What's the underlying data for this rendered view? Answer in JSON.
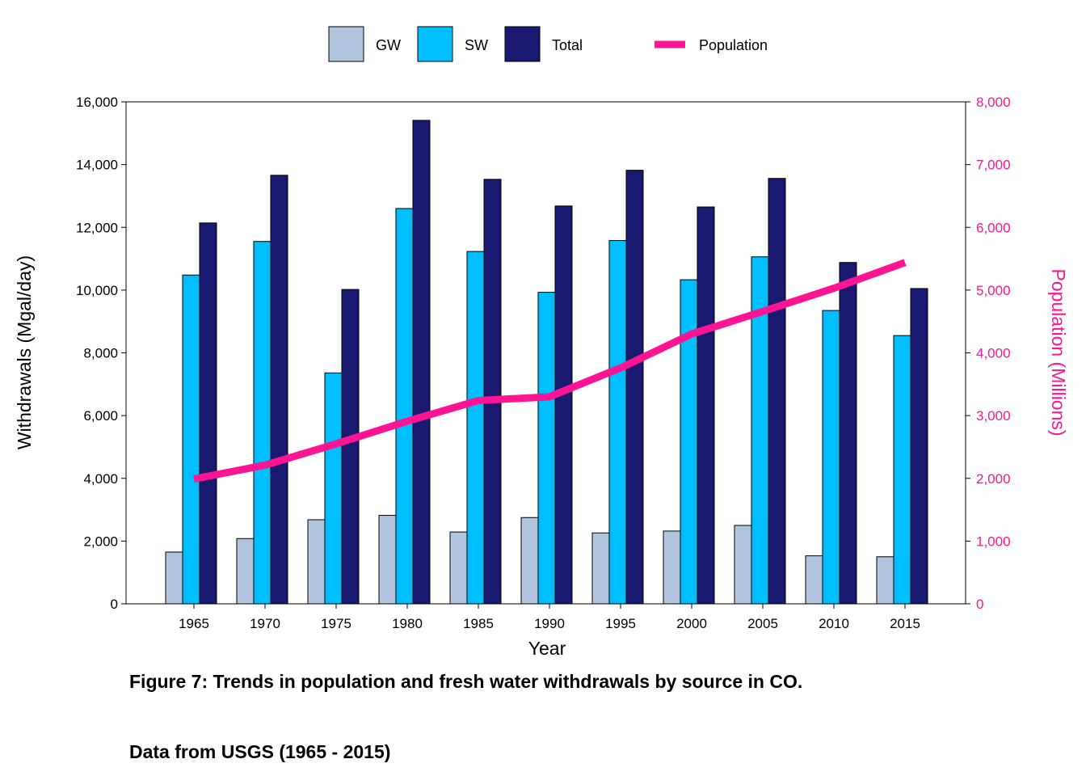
{
  "chart_data": {
    "type": "bar",
    "categories": [
      "1965",
      "1970",
      "1975",
      "1980",
      "1985",
      "1990",
      "1995",
      "2000",
      "2005",
      "2010",
      "2015"
    ],
    "series": [
      {
        "name": "GW",
        "axis": "left",
        "color": "#b0c4de",
        "values": [
          1650,
          2080,
          2680,
          2820,
          2290,
          2750,
          2260,
          2320,
          2500,
          1530,
          1500
        ]
      },
      {
        "name": "SW",
        "axis": "left",
        "color": "#00bfff",
        "values": [
          10480,
          11550,
          7360,
          12600,
          11230,
          9930,
          11580,
          10330,
          11060,
          9350,
          8550
        ]
      },
      {
        "name": "Total",
        "axis": "left",
        "color": "#191970",
        "values": [
          12140,
          13660,
          10020,
          15410,
          13530,
          12680,
          13820,
          12650,
          13560,
          10880,
          10050
        ]
      },
      {
        "name": "Population",
        "type": "line",
        "axis": "right",
        "color": "#ff1493",
        "values": [
          1990,
          2210,
          2550,
          2910,
          3240,
          3300,
          3760,
          4300,
          4660,
          5030,
          5440
        ]
      }
    ],
    "xlabel": "Year",
    "ylabel": "Withdrawals (Mgal/day)",
    "ylabel_right": "Population (Millions)",
    "ylim": [
      0,
      16000
    ],
    "ylim_right": [
      0,
      8000
    ],
    "yticks": [
      "0",
      "2,000",
      "4,000",
      "6,000",
      "8,000",
      "10,000",
      "12,000",
      "14,000",
      "16,000"
    ],
    "yticks_right": [
      "0",
      "1,000",
      "2,000",
      "3,000",
      "4,000",
      "5,000",
      "6,000",
      "7,000",
      "8,000"
    ],
    "grid": false,
    "legend_position": "top"
  },
  "caption": {
    "line1": "Figure 7: Trends in population and fresh water withdrawals by source in CO.",
    "line2": "Data from USGS (1965 - 2015)"
  }
}
